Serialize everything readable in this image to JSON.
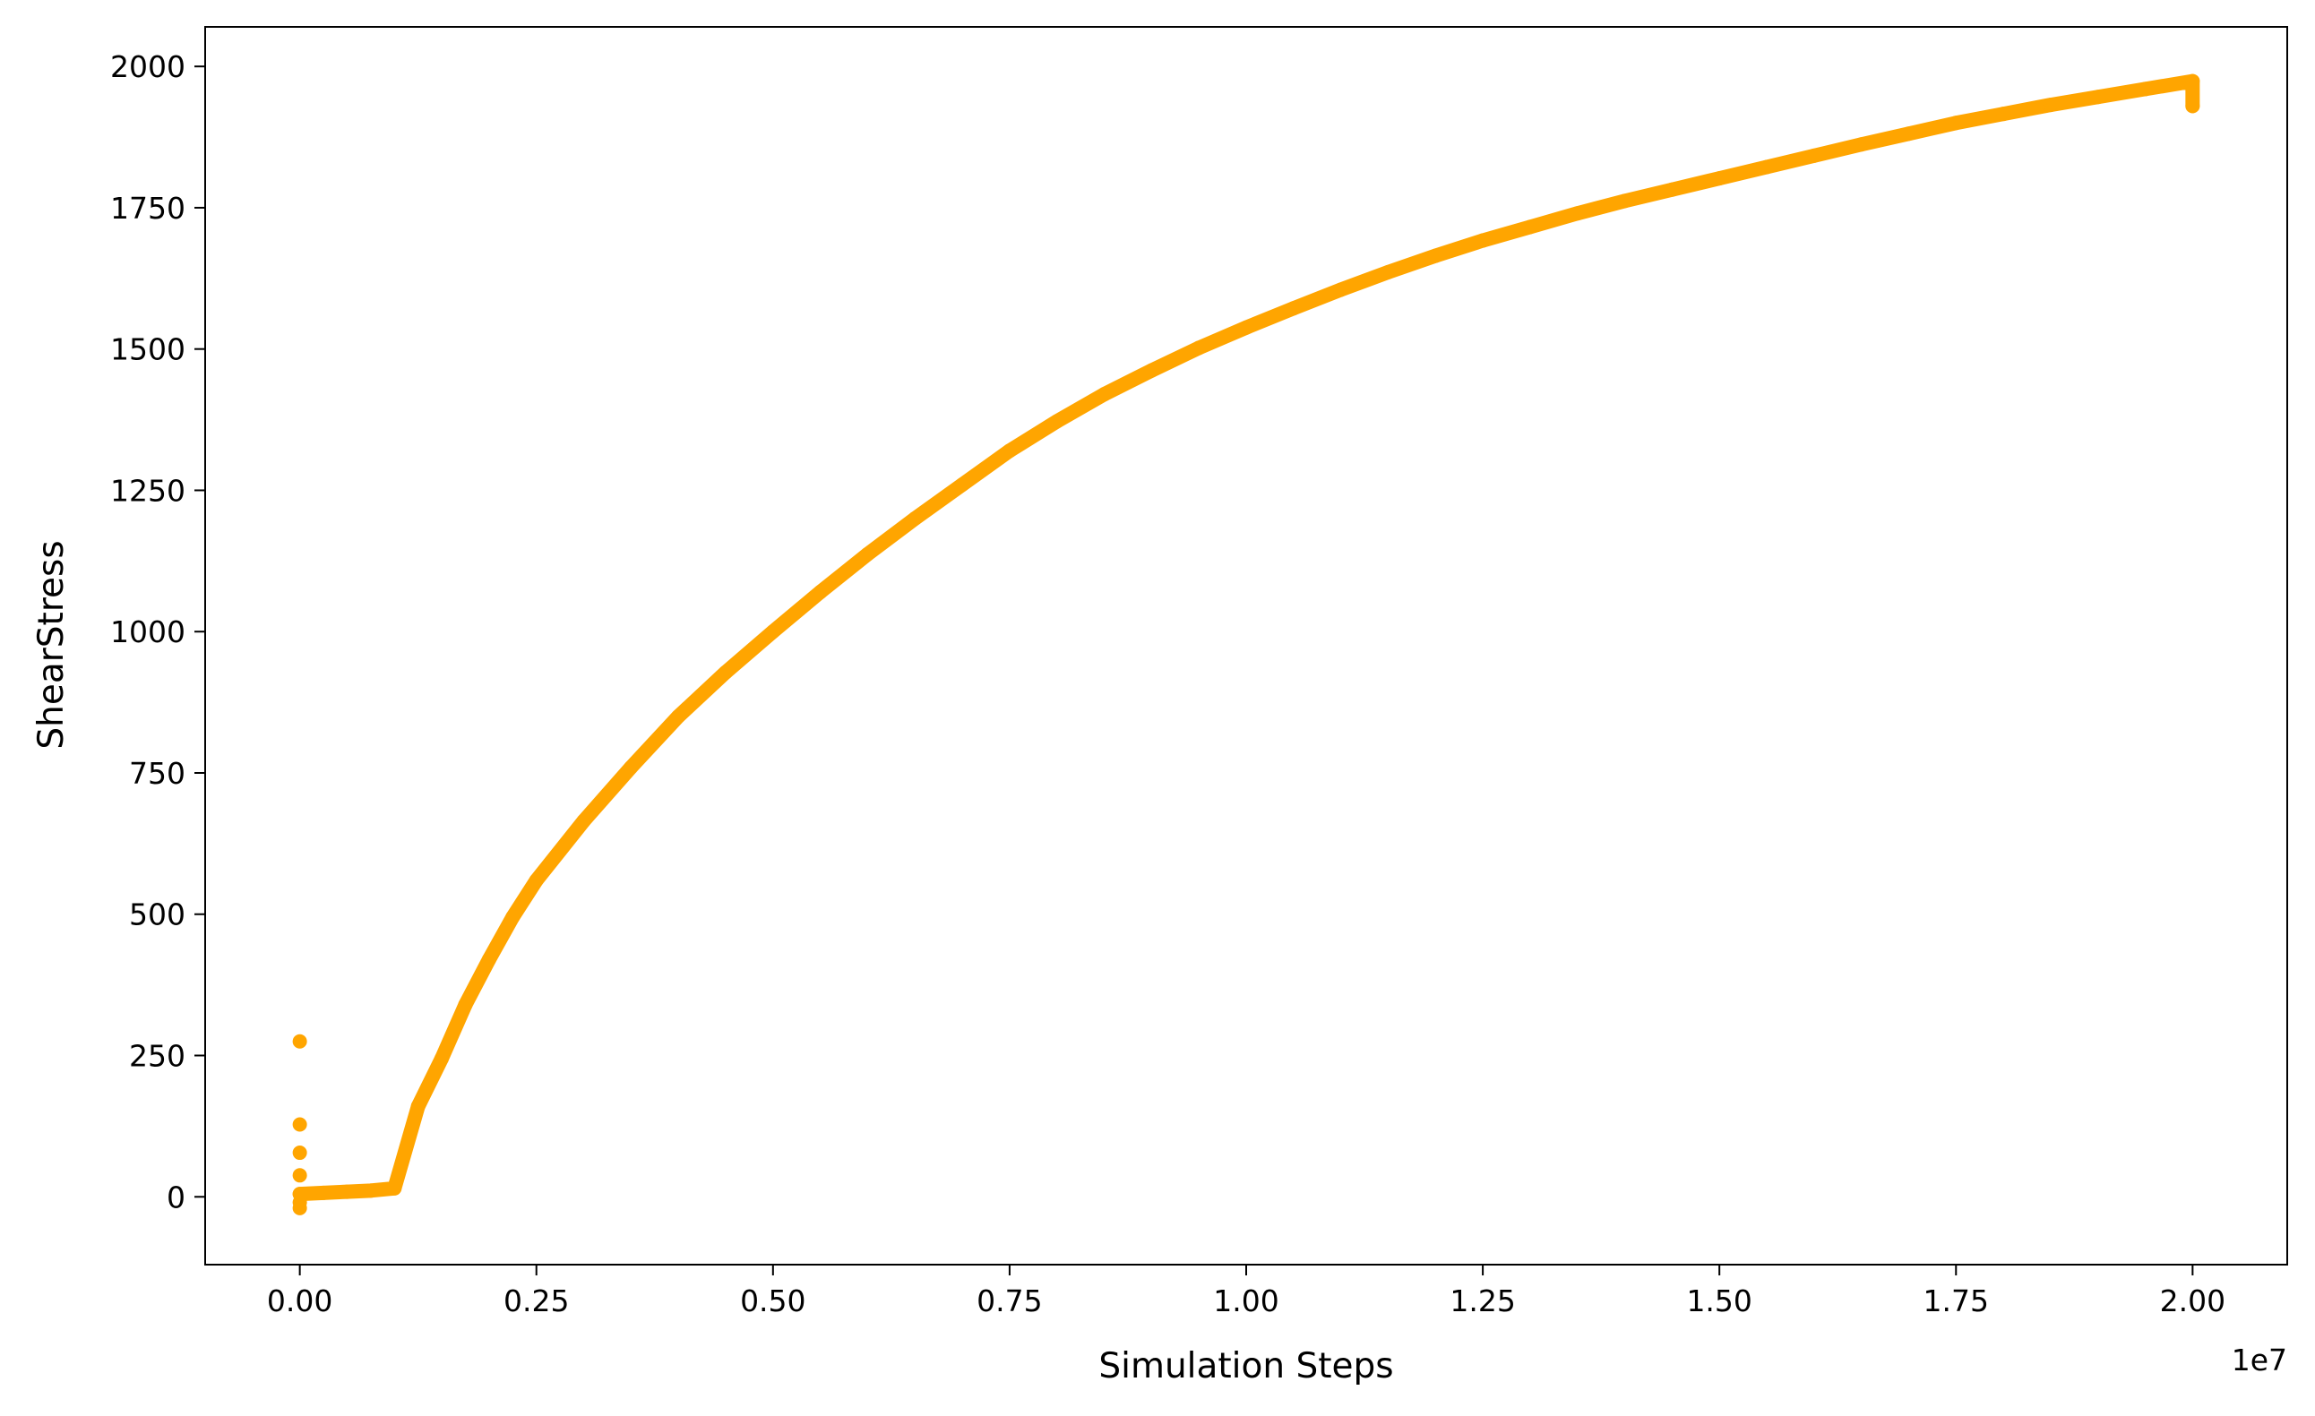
{
  "chart_data": {
    "type": "scatter",
    "x_label": "Simulation Steps",
    "y_label": "ShearStress",
    "x_offset_label": "1e7",
    "color": "#ffa500",
    "x": [
      0,
      null,
      0,
      null,
      0,
      null,
      0,
      null,
      0,
      null,
      0,
      null,
      0,
      0.025,
      0.05,
      0.075,
      0.1,
      0.125,
      0.15,
      0.175,
      0.2,
      0.225,
      0.25,
      0.3,
      0.35,
      0.4,
      0.45,
      0.5,
      0.55,
      0.6,
      0.65,
      0.7,
      0.75,
      0.8,
      0.85,
      0.9,
      0.95,
      1.0,
      1.05,
      1.1,
      1.15,
      1.2,
      1.25,
      1.3,
      1.35,
      1.4,
      1.45,
      1.5,
      1.55,
      1.6,
      1.65,
      1.7,
      1.75,
      1.8,
      1.85,
      1.9,
      1.95,
      2.0,
      2.0
    ],
    "values": [
      275,
      null,
      128,
      null,
      78,
      null,
      38,
      null,
      -20,
      null,
      -10,
      null,
      5,
      7,
      9,
      11,
      15,
      160,
      245,
      340,
      420,
      495,
      560,
      665,
      760,
      850,
      928,
      1000,
      1070,
      1137,
      1200,
      1260,
      1320,
      1372,
      1420,
      1462,
      1502,
      1538,
      1572,
      1605,
      1636,
      1665,
      1692,
      1716,
      1740,
      1762,
      1782,
      1802,
      1822,
      1842,
      1862,
      1881,
      1900,
      1916,
      1932,
      1946,
      1960,
      1974,
      1930
    ],
    "xlim": [
      -0.1,
      2.1
    ],
    "ylim": [
      -120,
      2070
    ],
    "xticks": [
      {
        "value": 0,
        "label": "0.00"
      },
      0.25,
      {
        "value": 0.5,
        "label": "0.50"
      },
      0.75,
      {
        "value": 1,
        "label": "1.00"
      },
      1.25,
      {
        "value": 1.5,
        "label": "1.50"
      },
      1.75,
      {
        "value": 2,
        "label": "2.00"
      }
    ],
    "yticks": [
      0,
      250,
      500,
      750,
      1000,
      1250,
      1500,
      1750,
      2000
    ]
  }
}
